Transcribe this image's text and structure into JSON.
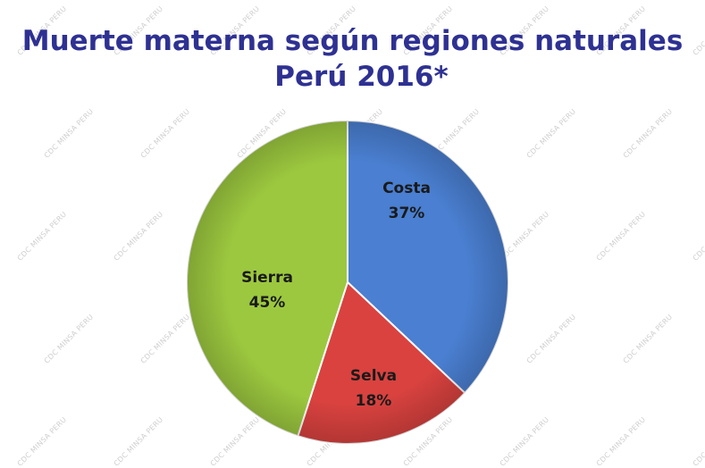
{
  "title": {
    "line1": "Muerte materna según regiones naturales",
    "line2": "Perú 2016*"
  },
  "watermark": "CDC MINSA PERU",
  "colors": {
    "title": "#2e3192",
    "costa": "#4a7fd1",
    "selva": "#d9423f",
    "sierra": "#9cc83f"
  },
  "chart_data": {
    "type": "pie",
    "title": "Muerte materna según regiones naturales Perú 2016*",
    "slices": [
      {
        "label": "Costa",
        "value": 37,
        "value_label": "37%",
        "color": "#4a7fd1"
      },
      {
        "label": "Selva",
        "value": 18,
        "value_label": "18%",
        "color": "#d9423f"
      },
      {
        "label": "Sierra",
        "value": 45,
        "value_label": "45%",
        "color": "#9cc83f"
      }
    ],
    "legend": "none"
  }
}
